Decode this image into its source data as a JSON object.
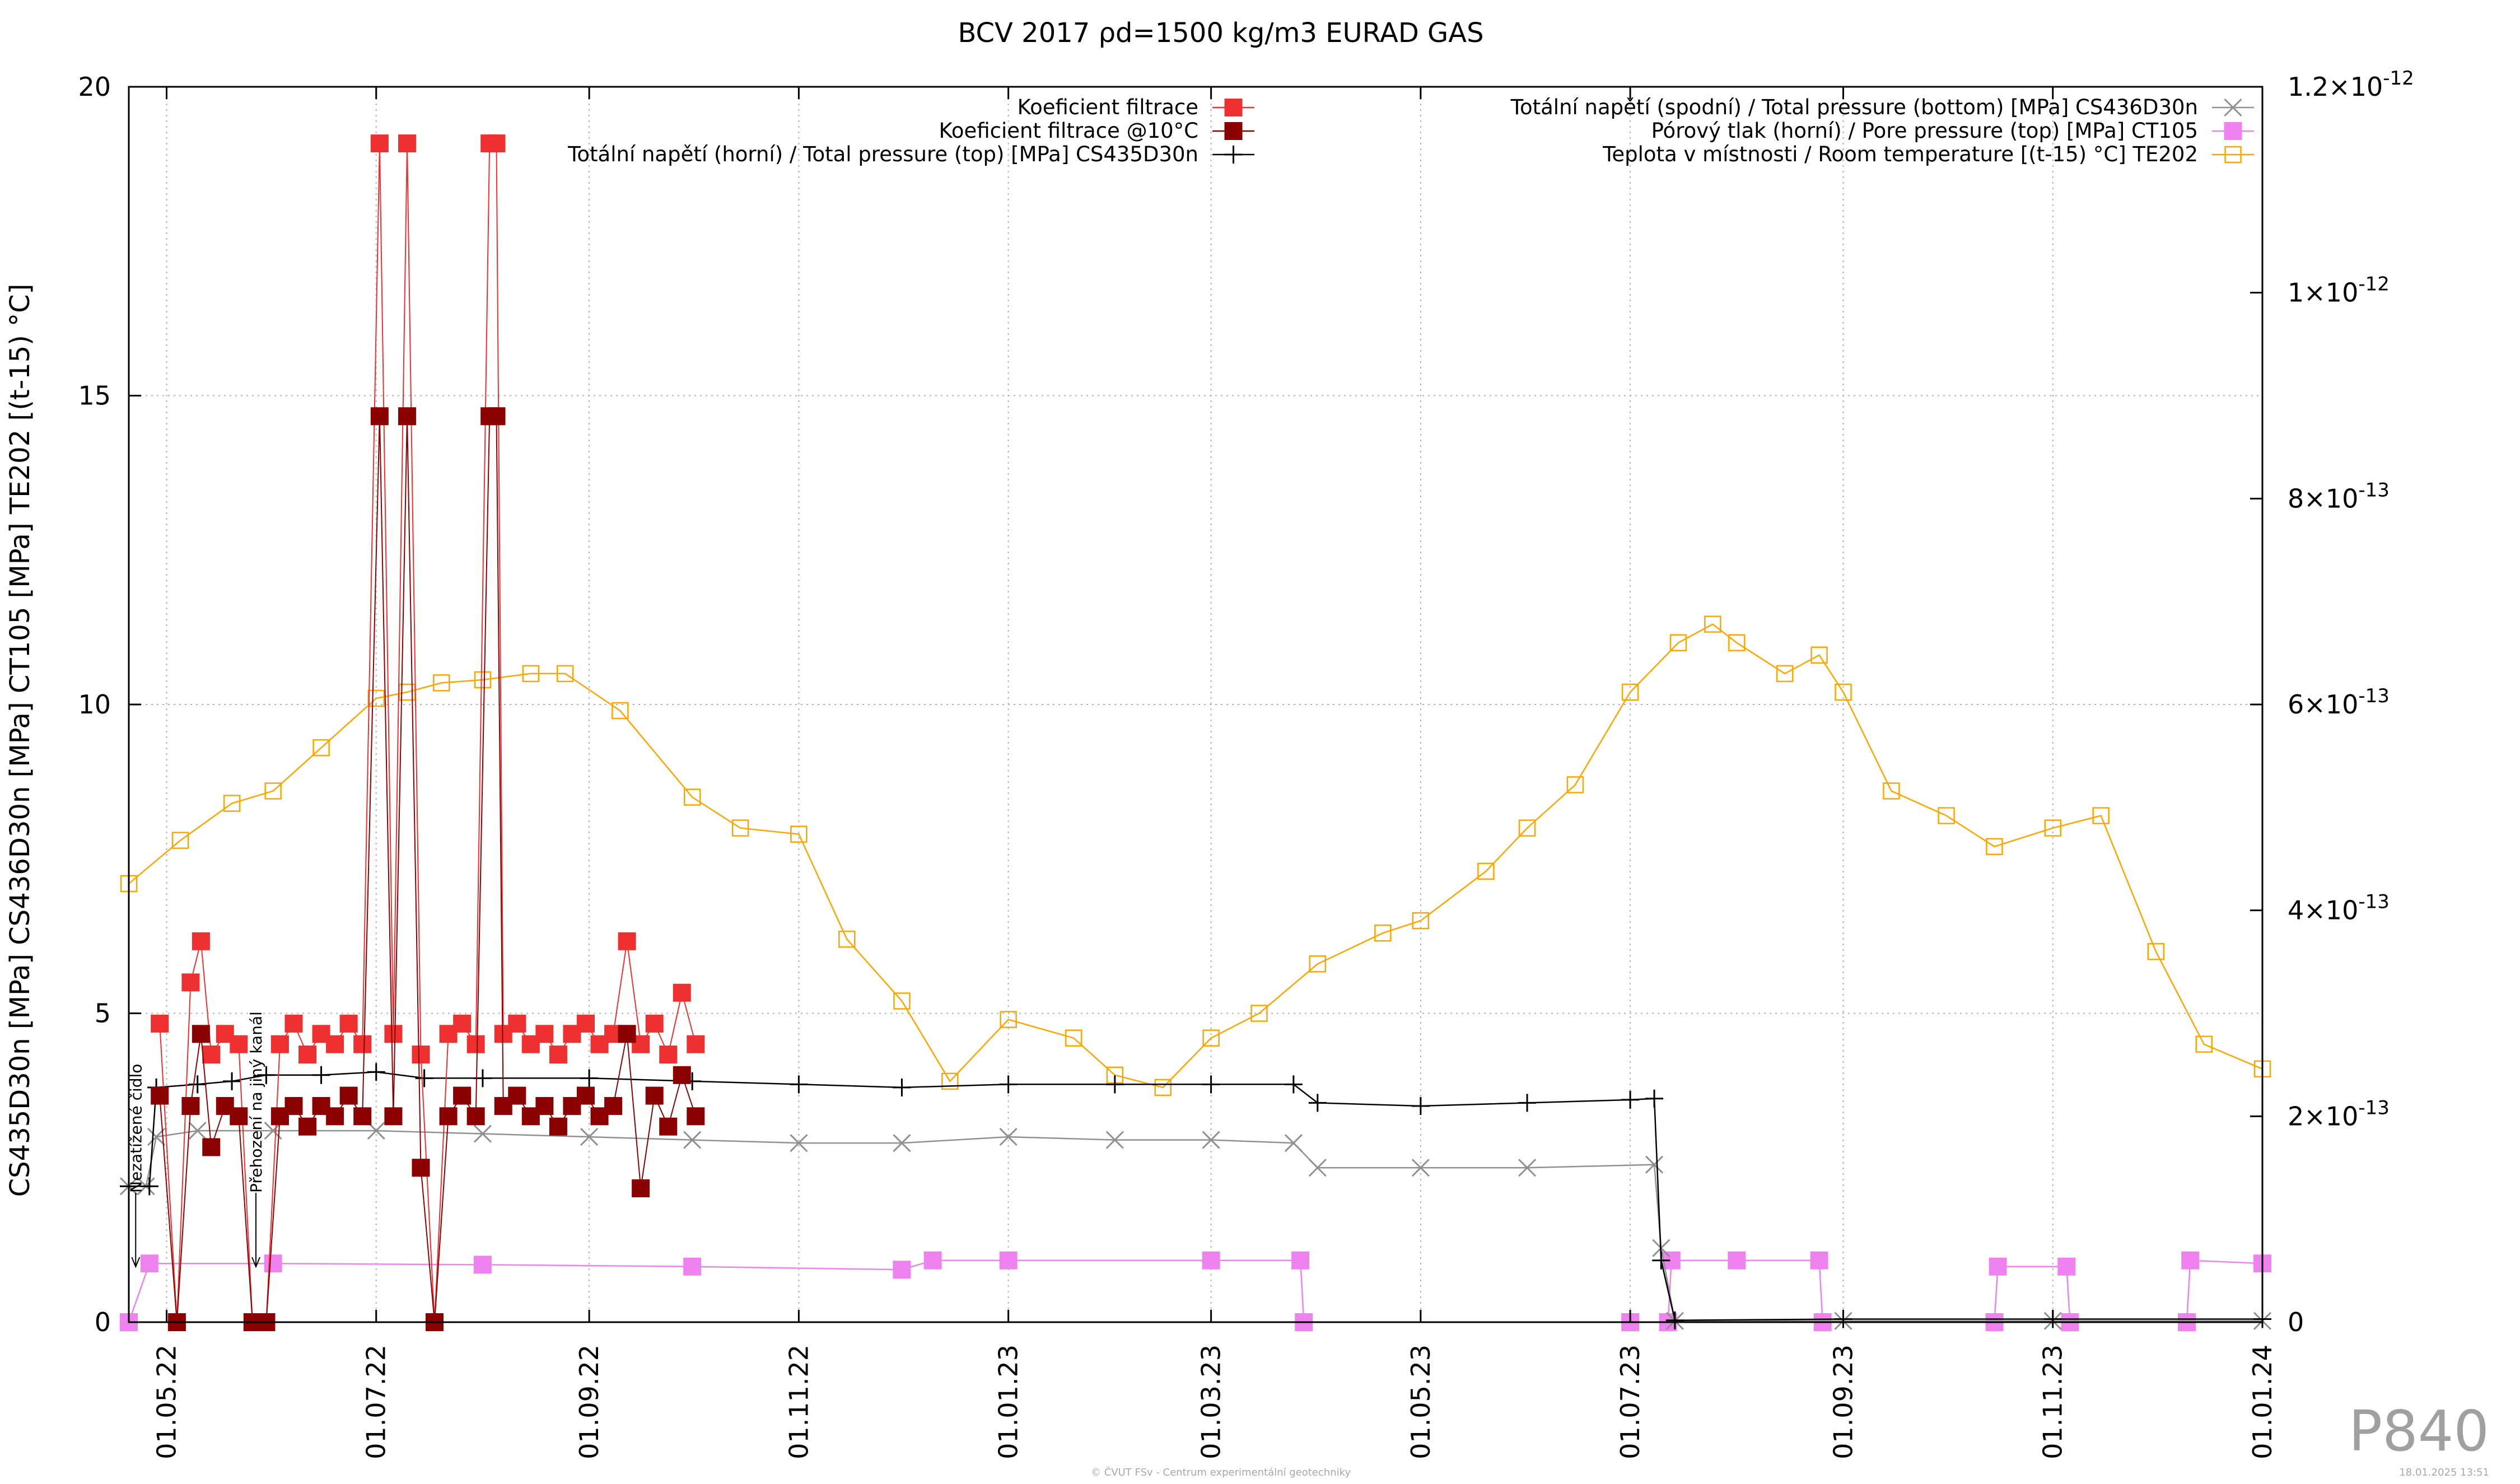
{
  "chart_data": {
    "type": "line",
    "title": "BCV 2017 ρd=1500 kg/m3 EURAD GAS",
    "ylabel": "CS435D30n [MPa] CS436D30n [MPa] CT105 [MPa] TE202 [(t-15) °C]",
    "xlabel": "",
    "ylim": [
      0,
      20
    ],
    "y2lim": [
      0,
      1.2e-12
    ],
    "xlim": [
      "2022-04-20",
      "2024-01-01"
    ],
    "grid": true,
    "legend_position": "top",
    "x_ticks": [
      "01.05.22",
      "01.07.22",
      "01.09.22",
      "01.11.22",
      "01.01.23",
      "01.03.23",
      "01.05.23",
      "01.07.23",
      "01.09.23",
      "01.11.23",
      "01.01.24"
    ],
    "x_tick_dates": [
      "2022-05-01",
      "2022-07-01",
      "2022-09-01",
      "2022-11-01",
      "2023-01-01",
      "2023-03-01",
      "2023-05-01",
      "2023-07-01",
      "2023-09-01",
      "2023-11-01",
      "2024-01-01"
    ],
    "y_ticks": [
      "0",
      "5",
      "10",
      "15",
      "20"
    ],
    "y_tick_values": [
      0,
      5,
      10,
      15,
      20
    ],
    "y2_ticks": [
      {
        "mantissa": "0",
        "exp": ""
      },
      {
        "mantissa": "2×10",
        "exp": "-13"
      },
      {
        "mantissa": "4×10",
        "exp": "-13"
      },
      {
        "mantissa": "6×10",
        "exp": "-13"
      },
      {
        "mantissa": "8×10",
        "exp": "-13"
      },
      {
        "mantissa": "1×10",
        "exp": "-12"
      },
      {
        "mantissa": "1.2×10",
        "exp": "-12"
      }
    ],
    "y2_tick_values": [
      0,
      2e-13,
      4e-13,
      6e-13,
      8e-13,
      1e-12,
      1.2e-12
    ],
    "annotations": [
      "Nezatížené čidlo",
      "Přehození na jiný kanál"
    ],
    "annotation_dates": [
      "2022-04-22",
      "2022-05-27"
    ],
    "series": [
      {
        "name": "Koeficient filtrace",
        "axis": "y2",
        "color": "#ee3030",
        "marker": "filled-square",
        "x": [
          "2022-04-29",
          "2022-05-04",
          "2022-05-08",
          "2022-05-11",
          "2022-05-14",
          "2022-05-18",
          "2022-05-22",
          "2022-05-26",
          "2022-05-30",
          "2022-06-03",
          "2022-06-07",
          "2022-06-11",
          "2022-06-15",
          "2022-06-19",
          "2022-06-23",
          "2022-06-27",
          "2022-07-02",
          "2022-07-06",
          "2022-07-10",
          "2022-07-14",
          "2022-07-18",
          "2022-07-22",
          "2022-07-26",
          "2022-07-30",
          "2022-08-03",
          "2022-08-05",
          "2022-08-07",
          "2022-08-11",
          "2022-08-15",
          "2022-08-19",
          "2022-08-23",
          "2022-08-27",
          "2022-08-31",
          "2022-09-04",
          "2022-09-08",
          "2022-09-12",
          "2022-09-16",
          "2022-09-20",
          "2022-09-24",
          "2022-09-28",
          "2022-10-02"
        ],
        "y": [
          2.9e-13,
          0,
          3.3e-13,
          3.7e-13,
          2.6e-13,
          2.8e-13,
          2.7e-13,
          0,
          0,
          2.7e-13,
          2.9e-13,
          2.6e-13,
          2.8e-13,
          2.7e-13,
          2.9e-13,
          2.7e-13,
          1.145e-12,
          2.8e-13,
          1.145e-12,
          2.6e-13,
          0,
          2.8e-13,
          2.9e-13,
          2.7e-13,
          1.145e-12,
          1.145e-12,
          2.8e-13,
          2.9e-13,
          2.7e-13,
          2.8e-13,
          2.6e-13,
          2.8e-13,
          2.9e-13,
          2.7e-13,
          2.8e-13,
          3.7e-13,
          2.7e-13,
          2.9e-13,
          2.6e-13,
          3.2e-13,
          2.7e-13
        ]
      },
      {
        "name": "Koeficient filtrace @10°C",
        "axis": "y2",
        "color": "#8b0000",
        "marker": "filled-square",
        "x": [
          "2022-04-29",
          "2022-05-04",
          "2022-05-08",
          "2022-05-11",
          "2022-05-14",
          "2022-05-18",
          "2022-05-22",
          "2022-05-26",
          "2022-05-30",
          "2022-06-03",
          "2022-06-07",
          "2022-06-11",
          "2022-06-15",
          "2022-06-19",
          "2022-06-23",
          "2022-06-27",
          "2022-07-02",
          "2022-07-06",
          "2022-07-10",
          "2022-07-14",
          "2022-07-18",
          "2022-07-22",
          "2022-07-26",
          "2022-07-30",
          "2022-08-03",
          "2022-08-05",
          "2022-08-07",
          "2022-08-11",
          "2022-08-15",
          "2022-08-19",
          "2022-08-23",
          "2022-08-27",
          "2022-08-31",
          "2022-09-04",
          "2022-09-08",
          "2022-09-12",
          "2022-09-16",
          "2022-09-20",
          "2022-09-24",
          "2022-09-28",
          "2022-10-02"
        ],
        "y": [
          2.2e-13,
          0,
          2.1e-13,
          2.8e-13,
          1.7e-13,
          2.1e-13,
          2e-13,
          0,
          0,
          2e-13,
          2.1e-13,
          1.9e-13,
          2.1e-13,
          2e-13,
          2.2e-13,
          2e-13,
          8.8e-13,
          2e-13,
          8.8e-13,
          1.5e-13,
          0,
          2e-13,
          2.2e-13,
          2e-13,
          8.8e-13,
          8.8e-13,
          2.1e-13,
          2.2e-13,
          2e-13,
          2.1e-13,
          1.9e-13,
          2.1e-13,
          2.2e-13,
          2e-13,
          2.1e-13,
          2.8e-13,
          1.3e-13,
          2.2e-13,
          1.9e-13,
          2.4e-13,
          2e-13
        ]
      },
      {
        "name": "Totální napětí (horní) / Total pressure (top) [MPa] CS435D30n",
        "axis": "y",
        "color": "#000000",
        "marker": "plus",
        "x": [
          "2022-04-20",
          "2022-04-26",
          "2022-04-28",
          "2022-05-10",
          "2022-05-20",
          "2022-05-30",
          "2022-06-15",
          "2022-07-01",
          "2022-07-15",
          "2022-08-01",
          "2022-09-01",
          "2022-10-01",
          "2022-11-01",
          "2022-12-01",
          "2023-01-01",
          "2023-02-01",
          "2023-03-01",
          "2023-03-25",
          "2023-04-01",
          "2023-05-01",
          "2023-06-01",
          "2023-07-01",
          "2023-07-08",
          "2023-07-10",
          "2023-07-14",
          "2023-09-01",
          "2023-11-01",
          "2024-01-01"
        ],
        "y": [
          2.2,
          2.2,
          3.8,
          3.85,
          3.9,
          4.0,
          4.0,
          4.05,
          3.95,
          3.95,
          3.95,
          3.9,
          3.85,
          3.8,
          3.85,
          3.85,
          3.85,
          3.85,
          3.55,
          3.5,
          3.55,
          3.6,
          3.62,
          1.0,
          0.03,
          0.05,
          0.05,
          0.05
        ]
      },
      {
        "name": "Totální napětí (spodní) / Total pressure (bottom) [MPa] CS436D30n",
        "axis": "y",
        "color": "#909090",
        "marker": "cross",
        "x": [
          "2022-04-20",
          "2022-04-25",
          "2022-04-28",
          "2022-05-10",
          "2022-06-01",
          "2022-07-01",
          "2022-08-01",
          "2022-09-01",
          "2022-10-01",
          "2022-11-01",
          "2022-12-01",
          "2023-01-01",
          "2023-02-01",
          "2023-03-01",
          "2023-03-25",
          "2023-04-01",
          "2023-05-01",
          "2023-06-01",
          "2023-07-08",
          "2023-07-10",
          "2023-07-14",
          "2023-09-01",
          "2023-11-01",
          "2024-01-01"
        ],
        "y": [
          2.2,
          2.2,
          3.0,
          3.1,
          3.1,
          3.1,
          3.05,
          3.0,
          2.95,
          2.9,
          2.9,
          3.0,
          2.95,
          2.95,
          2.9,
          2.5,
          2.5,
          2.5,
          2.55,
          1.2,
          0.02,
          0.02,
          0.02,
          0.02
        ]
      },
      {
        "name": "Pórový tlak (horní) / Pore pressure (top) [MPa] CT105",
        "axis": "y",
        "color": "#ee82ee",
        "marker": "filled-square",
        "x": [
          "2022-04-20",
          "2022-04-26",
          "2022-06-01",
          "2022-08-01",
          "2022-10-01",
          "2022-12-01",
          "2022-12-10",
          "2023-01-01",
          "2023-03-01",
          "2023-03-27",
          "2023-03-28",
          "2023-07-01",
          "2023-07-12",
          "2023-07-13",
          "2023-08-01",
          "2023-08-25",
          "2023-08-26",
          "2023-10-15",
          "2023-10-16",
          "2023-11-05",
          "2023-11-06",
          "2023-12-10",
          "2023-12-11",
          "2024-01-01"
        ],
        "y": [
          0,
          0.95,
          0.95,
          0.93,
          0.9,
          0.85,
          1.0,
          1.0,
          1.0,
          1.0,
          0,
          0,
          0,
          1.0,
          1.0,
          1.0,
          0,
          0,
          0.9,
          0.9,
          0,
          0,
          1.0,
          0.95
        ]
      },
      {
        "name": "Teplota v místnosti / Room temperature [(t-15) °C] TE202",
        "axis": "y",
        "color": "#ffa500",
        "marker": "open-square",
        "x": [
          "2022-04-20",
          "2022-05-05",
          "2022-05-20",
          "2022-06-01",
          "2022-06-15",
          "2022-07-01",
          "2022-07-10",
          "2022-07-20",
          "2022-08-01",
          "2022-08-15",
          "2022-08-25",
          "2022-09-10",
          "2022-10-01",
          "2022-10-15",
          "2022-11-01",
          "2022-11-15",
          "2022-12-01",
          "2022-12-15",
          "2023-01-01",
          "2023-01-20",
          "2023-02-01",
          "2023-02-15",
          "2023-03-01",
          "2023-03-15",
          "2023-04-01",
          "2023-04-20",
          "2023-05-01",
          "2023-05-20",
          "2023-06-01",
          "2023-06-15",
          "2023-07-01",
          "2023-07-15",
          "2023-07-25",
          "2023-08-01",
          "2023-08-15",
          "2023-08-25",
          "2023-09-01",
          "2023-09-15",
          "2023-10-01",
          "2023-10-15",
          "2023-11-01",
          "2023-11-15",
          "2023-12-01",
          "2023-12-15",
          "2024-01-01"
        ],
        "y": [
          7.1,
          7.8,
          8.4,
          8.6,
          9.3,
          10.1,
          10.2,
          10.35,
          10.4,
          10.5,
          10.5,
          9.9,
          8.5,
          8.0,
          7.9,
          6.2,
          5.2,
          3.9,
          4.9,
          4.6,
          4.0,
          3.8,
          4.6,
          5.0,
          5.8,
          6.3,
          6.5,
          7.3,
          8.0,
          8.7,
          10.2,
          11.0,
          11.3,
          11.0,
          10.5,
          10.8,
          10.2,
          8.6,
          8.2,
          7.7,
          8.0,
          8.2,
          6.0,
          4.5,
          4.1
        ]
      }
    ]
  },
  "watermark": "P840",
  "footer": {
    "copyright": "© ČVUT FSv - Centrum experimentální geotechniky",
    "timestamp": "18.01.2025 13:51"
  }
}
